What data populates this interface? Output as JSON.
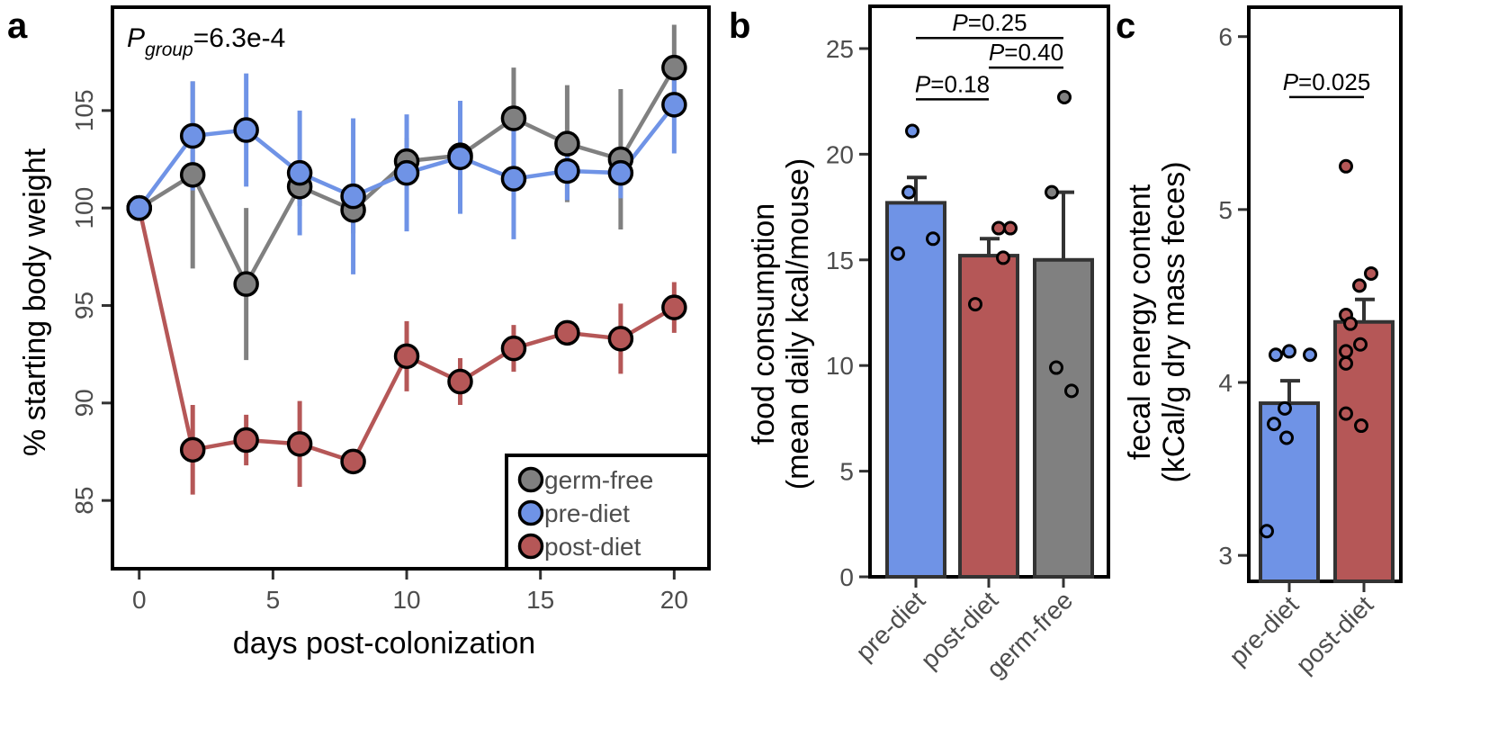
{
  "colors": {
    "germ-free": "#808080",
    "pre-diet": "#6f93e6",
    "post-diet": "#b55757"
  },
  "chart_data": [
    {
      "panel_label": "a",
      "type": "line",
      "annotation": {
        "main": "P",
        "sub": "group",
        "value": "=6.3e-4"
      },
      "xlabel": "days post-colonization",
      "ylabel": "% starting body weight",
      "xlim": [
        -1,
        21.3
      ],
      "ylim": [
        81.5,
        110.3
      ],
      "xticks": [
        0,
        5,
        10,
        15,
        20
      ],
      "yticks": [
        85,
        90,
        95,
        100,
        105
      ],
      "legend": {
        "position": "bottom-right",
        "entries": [
          "germ-free",
          "pre-diet",
          "post-diet"
        ]
      },
      "series": [
        {
          "name": "germ-free",
          "x": [
            0,
            2,
            4,
            6,
            8,
            10,
            12,
            14,
            16,
            18,
            20
          ],
          "y": [
            100,
            101.7,
            96.1,
            101.1,
            99.9,
            102.4,
            102.7,
            104.6,
            103.3,
            102.5,
            107.2
          ],
          "err": [
            0,
            4.8,
            3.9,
            1.0,
            1.2,
            1.2,
            1.2,
            2.6,
            3.0,
            3.6,
            2.2
          ]
        },
        {
          "name": "pre-diet",
          "x": [
            0,
            2,
            4,
            6,
            8,
            10,
            12,
            14,
            16,
            18,
            20
          ],
          "y": [
            100,
            103.7,
            104.0,
            101.8,
            100.6,
            101.8,
            102.6,
            101.5,
            101.9,
            101.8,
            105.3
          ],
          "err": [
            0,
            2.8,
            2.9,
            3.2,
            4.0,
            3.0,
            2.9,
            3.1,
            1.5,
            1.3,
            2.5
          ]
        },
        {
          "name": "post-diet",
          "x": [
            0,
            2,
            4,
            6,
            8,
            10,
            12,
            14,
            16,
            18,
            20
          ],
          "y": [
            100,
            87.6,
            88.1,
            87.9,
            87.0,
            92.4,
            91.1,
            92.8,
            93.6,
            93.3,
            94.9
          ],
          "err": [
            0,
            2.3,
            1.3,
            2.2,
            0.6,
            1.8,
            1.2,
            1.2,
            0.4,
            1.8,
            1.3
          ]
        }
      ]
    },
    {
      "panel_label": "b",
      "type": "bar",
      "ylabel": [
        "food consumption",
        "(mean daily kcal/mouse)"
      ],
      "ylim": [
        0,
        27.0
      ],
      "yticks": [
        0,
        5,
        10,
        15,
        20,
        25
      ],
      "categories": [
        "pre-diet",
        "post-diet",
        "germ-free"
      ],
      "values": [
        17.7,
        15.2,
        15.0
      ],
      "errors": [
        1.2,
        0.8,
        3.2
      ],
      "points": [
        [
          21.1,
          18.2,
          15.3,
          16.0
        ],
        [
          16.5,
          16.5,
          15.1,
          12.9
        ],
        [
          22.7,
          18.2,
          9.9,
          8.8
        ]
      ],
      "comparisons": [
        {
          "from": 0,
          "to": 1,
          "text": "P=0.18",
          "y": 22.6
        },
        {
          "from": 1,
          "to": 2,
          "text": "P=0.40",
          "y": 24.1
        },
        {
          "from": 0,
          "to": 2,
          "text": "P=0.25",
          "y": 25.5
        }
      ]
    },
    {
      "panel_label": "c",
      "type": "bar",
      "ylabel": [
        "fecal energy content",
        "(kCal/g dry mass feces)"
      ],
      "ylim": [
        2.85,
        6.17
      ],
      "yticks": [
        3,
        4,
        5,
        6
      ],
      "categories": [
        "pre-diet",
        "post-diet"
      ],
      "values": [
        3.88,
        4.35
      ],
      "errors": [
        0.13,
        0.13
      ],
      "points": [
        [
          4.16,
          4.18,
          4.16,
          3.85,
          3.76,
          3.68,
          3.14
        ],
        [
          5.25,
          4.63,
          4.56,
          4.39,
          4.34,
          4.22,
          4.18,
          4.11,
          3.82,
          3.75
        ]
      ],
      "comparisons": [
        {
          "from": 0,
          "to": 1,
          "text": "P=0.025",
          "y": 5.65
        }
      ]
    }
  ]
}
